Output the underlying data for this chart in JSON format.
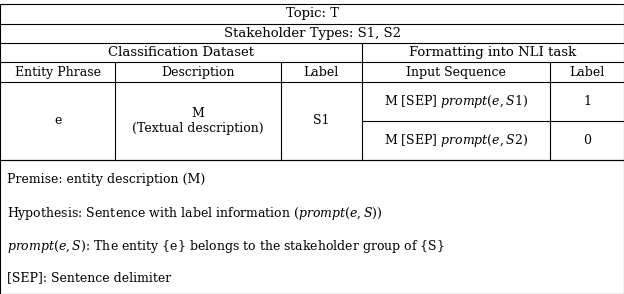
{
  "fig_width": 6.24,
  "fig_height": 2.94,
  "dpi": 100,
  "bg_color": "#ffffff",
  "border_color": "#000000",
  "note_lines": [
    "Premise: entity description (M)",
    "Hypothesis: Sentence with label information ($\\mathit{prompt}(e, S)$)",
    "$\\mathit{prompt}(e, S)$: The entity {e} belongs to the stakeholder group of {S}",
    "[SEP]: Sentence delimiter"
  ],
  "font_size_header": 9.5,
  "font_size_cell": 9.0,
  "font_size_note": 9.0
}
